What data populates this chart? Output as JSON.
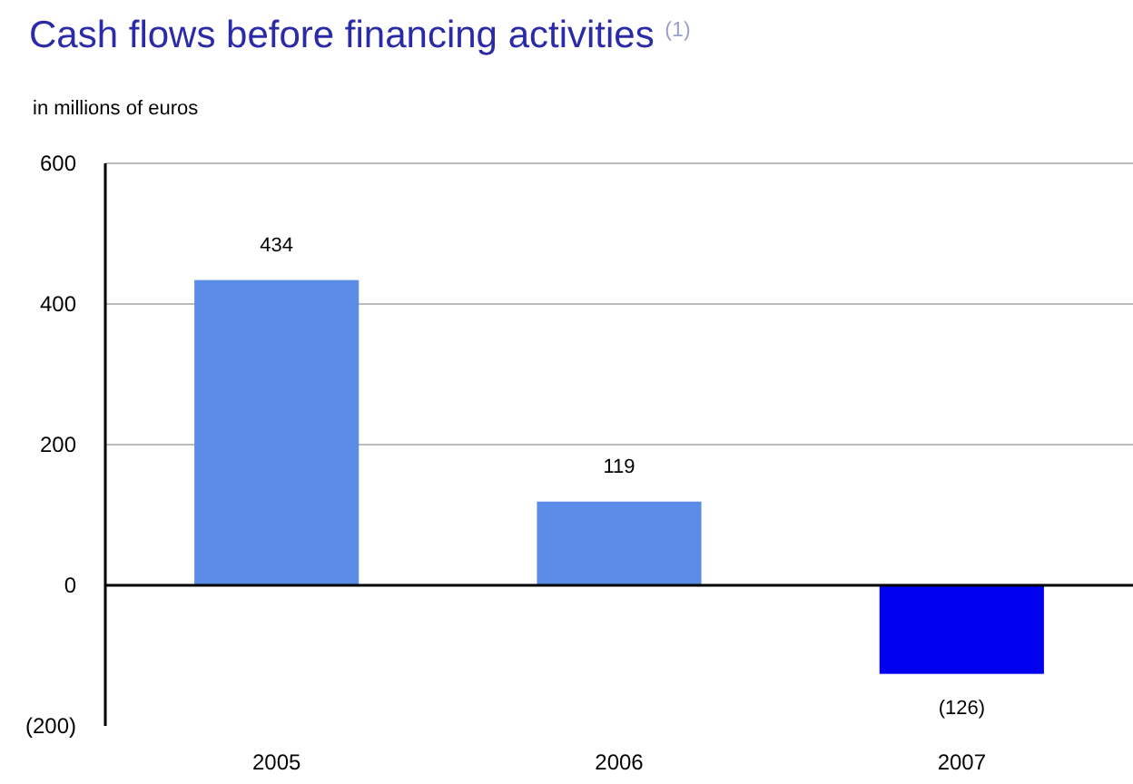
{
  "chart_data": {
    "type": "bar",
    "title": "Cash flows before financing activities $^{(1)}$",
    "subtitle": "in millions of euros",
    "categories": [
      "2005",
      "2006",
      "2007"
    ],
    "values": [
      434,
      119,
      -126
    ],
    "colors": [
      "#5b8de8",
      "#5b8de8",
      "#0000f0"
    ],
    "value_labels": [
      "434",
      "119",
      "(126)"
    ],
    "ylim": [
      -200,
      600
    ],
    "yticks": [
      {
        "value": -200,
        "label": "(200)"
      },
      0,
      200,
      400,
      600
    ],
    "grid": "y"
  }
}
